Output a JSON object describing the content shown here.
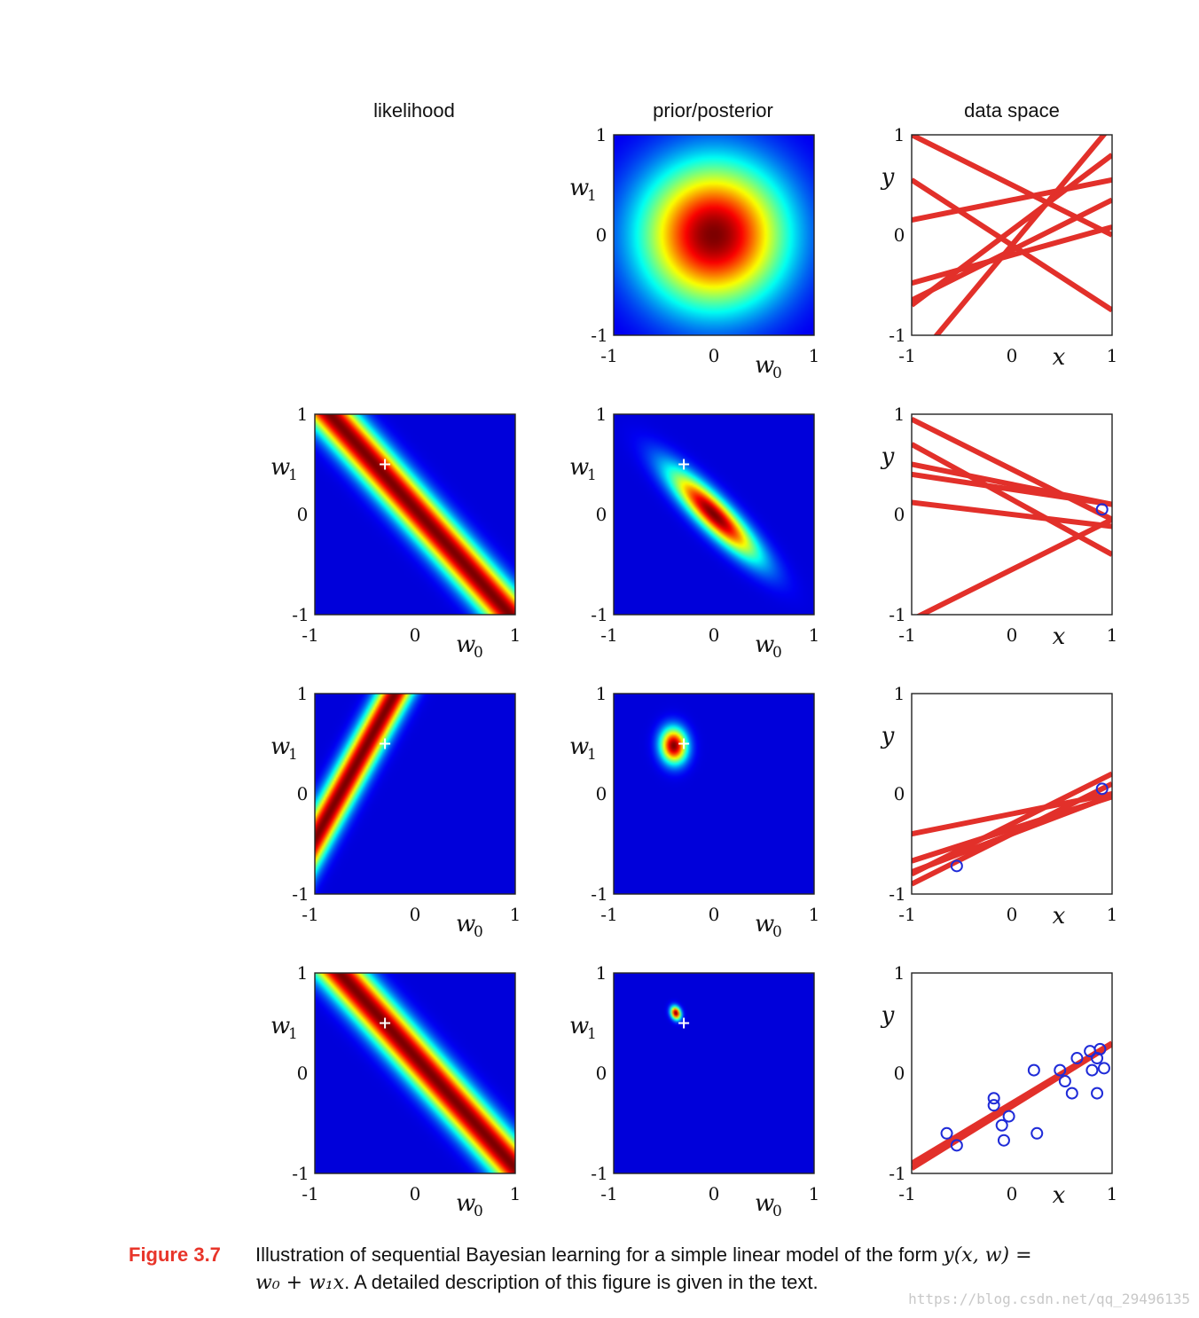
{
  "column_titles": [
    "likelihood",
    "prior/posterior",
    "data space"
  ],
  "axis_labels": {
    "w0": "w",
    "w0_sub": "0",
    "w1": "w",
    "w1_sub": "1",
    "x": "x",
    "y": "y"
  },
  "ticks": {
    "neg": "-1",
    "zero": "0",
    "pos": "1"
  },
  "colors": {
    "line": "#e2302a",
    "point": "#1f2bd8",
    "cross": "#ffffff",
    "caption_label": "#e8352a"
  },
  "caption": {
    "label": "Figure 3.7",
    "text_1": "Illustration of sequential Bayesian learning for a simple linear model of the form ",
    "math_1": "y(x, w) =",
    "math_2": "w₀ + w₁x",
    "text_2": ". A detailed description of this figure is given in the text."
  },
  "watermark": "https://blog.csdn.net/qq_29496135",
  "chart_data": {
    "type": "heatmap",
    "layout": "4 rows x 3 columns",
    "true_params": {
      "w0": -0.3,
      "w1": 0.5
    },
    "axes": {
      "w_panels": {
        "xlim": [
          -1,
          1
        ],
        "ylim": [
          -1,
          1
        ],
        "xlabel": "w0",
        "ylabel": "w1"
      },
      "data_panels": {
        "xlim": [
          -1,
          1
        ],
        "ylim": [
          -1,
          1
        ],
        "xlabel": "x",
        "ylabel": "y"
      }
    },
    "rows": [
      {
        "likelihood": null,
        "posterior": {
          "mean": [
            0,
            0
          ],
          "sx": 0.5,
          "sy": 0.5,
          "rho": 0
        },
        "lines": [
          [
            0.5,
            -0.5
          ],
          [
            -0.1,
            1.2
          ],
          [
            0.35,
            0.2
          ],
          [
            -0.2,
            0.28
          ],
          [
            -0.15,
            0.5
          ],
          [
            -0.1,
            -0.65
          ],
          [
            0.05,
            0.75
          ]
        ],
        "points": []
      },
      {
        "likelihood": {
          "x": 0.9,
          "t": 0.05,
          "width": 0.18
        },
        "posterior": {
          "mean": [
            0.0,
            0.0
          ],
          "sx": 0.3,
          "sy": 0.3,
          "rho": -0.88
        },
        "lines": [
          [
            0.45,
            -0.5
          ],
          [
            0.3,
            -0.2
          ],
          [
            0.0,
            -0.12
          ],
          [
            0.15,
            -0.55
          ],
          [
            -0.55,
            0.5
          ],
          [
            0.25,
            -0.15
          ]
        ],
        "points": [
          [
            0.9,
            0.05
          ]
        ]
      },
      {
        "likelihood": {
          "x": -0.55,
          "t": -0.75,
          "width": 0.12
        },
        "posterior": {
          "mean": [
            -0.4,
            0.48
          ],
          "sx": 0.09,
          "sy": 0.12,
          "rho": -0.05
        },
        "lines": [
          [
            -0.35,
            0.32
          ],
          [
            -0.4,
            0.5
          ],
          [
            -0.3,
            0.5
          ],
          [
            -0.4,
            0.38
          ],
          [
            -0.2,
            0.2
          ]
        ],
        "points": [
          [
            -0.55,
            -0.72
          ],
          [
            0.9,
            0.05
          ]
        ]
      },
      {
        "likelihood": {
          "x": 0.9,
          "t": 0.15,
          "width": 0.18
        },
        "posterior": {
          "mean": [
            -0.38,
            0.6
          ],
          "sx": 0.035,
          "sy": 0.045,
          "rho": -0.2
        },
        "lines": [
          [
            -0.3,
            0.6
          ],
          [
            -0.33,
            0.62
          ]
        ],
        "points": [
          [
            -0.65,
            -0.6
          ],
          [
            -0.55,
            -0.72
          ],
          [
            -0.18,
            -0.25
          ],
          [
            -0.18,
            -0.32
          ],
          [
            -0.1,
            -0.52
          ],
          [
            -0.03,
            -0.43
          ],
          [
            -0.08,
            -0.67
          ],
          [
            0.22,
            0.03
          ],
          [
            0.25,
            -0.6
          ],
          [
            0.48,
            0.03
          ],
          [
            0.53,
            -0.08
          ],
          [
            0.6,
            -0.2
          ],
          [
            0.65,
            0.15
          ],
          [
            0.78,
            0.22
          ],
          [
            0.8,
            0.03
          ],
          [
            0.85,
            0.15
          ],
          [
            0.85,
            -0.2
          ],
          [
            0.88,
            0.24
          ],
          [
            0.92,
            0.05
          ]
        ]
      }
    ]
  }
}
